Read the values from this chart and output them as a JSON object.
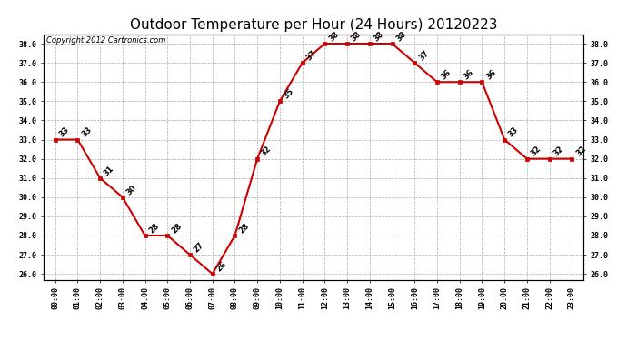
{
  "title": "Outdoor Temperature per Hour (24 Hours) 20120223",
  "copyright_text": "Copyright 2012 Cartronics.com",
  "hours": [
    "00:00",
    "01:00",
    "02:00",
    "03:00",
    "04:00",
    "05:00",
    "06:00",
    "07:00",
    "08:00",
    "09:00",
    "10:00",
    "11:00",
    "12:00",
    "13:00",
    "14:00",
    "15:00",
    "16:00",
    "17:00",
    "18:00",
    "19:00",
    "20:00",
    "21:00",
    "22:00",
    "23:00"
  ],
  "values": [
    33,
    33,
    31,
    30,
    28,
    28,
    27,
    26,
    28,
    32,
    35,
    37,
    38,
    38,
    38,
    38,
    37,
    36,
    36,
    36,
    33,
    32,
    32,
    32
  ],
  "line_color": "#cc0000",
  "marker": "s",
  "marker_color": "#cc0000",
  "marker_size": 3,
  "bg_color": "#ffffff",
  "grid_color": "#aaaaaa",
  "ylim_min": 26.0,
  "ylim_max": 38.0,
  "title_fontsize": 11,
  "label_fontsize": 6,
  "annot_fontsize": 6,
  "copyright_fontsize": 6
}
